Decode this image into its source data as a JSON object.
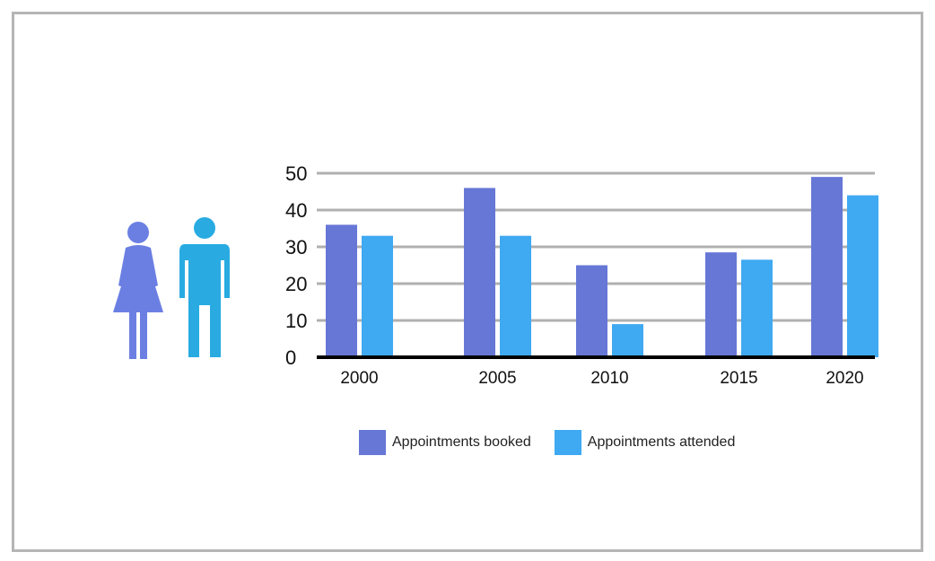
{
  "colors": {
    "booked": "#6677d6",
    "attended": "#3fa9f2",
    "female_icon": "#6b7fe3",
    "male_icon": "#29abe2",
    "grid": "#b0b0b0",
    "axis": "#000000"
  },
  "icons": [
    "female-person-icon",
    "male-person-icon"
  ],
  "chart_data": {
    "type": "bar",
    "categories": [
      "2000",
      "2005",
      "2010",
      "2015",
      "2020"
    ],
    "series": [
      {
        "name": "Appointments booked",
        "values": [
          36,
          46,
          25,
          28.5,
          49
        ]
      },
      {
        "name": "Appointments attended",
        "values": [
          33,
          33,
          9,
          26.5,
          44
        ]
      }
    ],
    "yticks": [
      0,
      10,
      20,
      30,
      40,
      50
    ],
    "ylim": [
      0,
      50
    ],
    "grid": true,
    "legend_position": "bottom",
    "title": "",
    "xlabel": "",
    "ylabel": ""
  }
}
